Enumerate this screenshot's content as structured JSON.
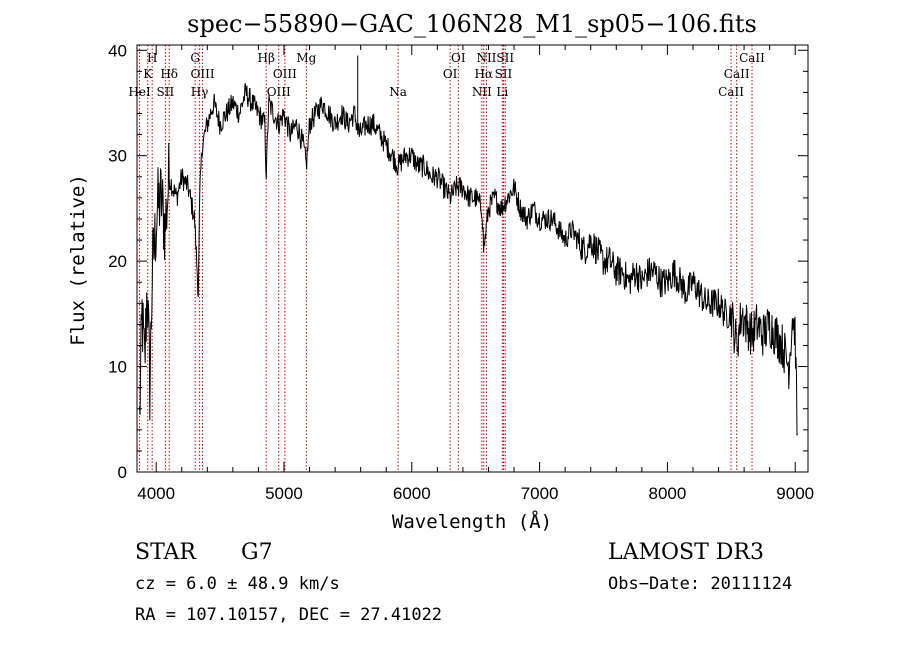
{
  "chart_data": {
    "type": "line",
    "title": "spec−55890−GAC_106N28_M1_sp05−106.fits",
    "xlabel": "Wavelength (Å)",
    "ylabel": "Flux (relative)",
    "xlim": [
      3850,
      9100
    ],
    "ylim": [
      0,
      40.5
    ],
    "xticks": [
      4000,
      5000,
      6000,
      7000,
      8000,
      9000
    ],
    "yticks": [
      0,
      10,
      20,
      30,
      40
    ],
    "grid": false,
    "series": [
      {
        "name": "spectrum",
        "x": [
          3870,
          3890,
          3910,
          3930,
          3950,
          3970,
          3990,
          4010,
          4040,
          4070,
          4100,
          4130,
          4160,
          4200,
          4250,
          4300,
          4330,
          4340,
          4360,
          4400,
          4450,
          4500,
          4550,
          4600,
          4650,
          4700,
          4750,
          4800,
          4850,
          4861,
          4880,
          4920,
          4960,
          5000,
          5050,
          5100,
          5150,
          5175,
          5200,
          5250,
          5300,
          5350,
          5400,
          5450,
          5500,
          5550,
          5590,
          5650,
          5700,
          5750,
          5800,
          5850,
          5893,
          5950,
          6000,
          6050,
          6100,
          6150,
          6200,
          6250,
          6300,
          6350,
          6400,
          6450,
          6500,
          6550,
          6563,
          6600,
          6650,
          6700,
          6750,
          6800,
          6850,
          6900,
          6950,
          7000,
          7050,
          7100,
          7150,
          7200,
          7250,
          7300,
          7350,
          7400,
          7450,
          7500,
          7550,
          7600,
          7650,
          7700,
          7750,
          7800,
          7850,
          7900,
          7950,
          8000,
          8050,
          8100,
          8150,
          8200,
          8250,
          8300,
          8350,
          8400,
          8450,
          8500,
          8542,
          8580,
          8620,
          8662,
          8700,
          8750,
          8800,
          8850,
          8900,
          8950,
          8980,
          9000,
          9020
        ],
        "values": [
          5,
          15,
          10,
          18,
          8,
          19,
          22,
          25,
          26,
          23,
          28,
          27,
          26,
          28,
          27,
          24,
          17,
          26,
          31,
          33,
          35,
          33,
          34,
          35,
          34,
          36,
          35,
          34,
          33,
          28,
          35,
          34,
          33,
          34,
          32,
          33,
          31,
          29,
          33,
          34,
          35,
          34,
          33,
          34,
          33,
          34,
          32,
          33,
          33,
          32,
          31,
          30,
          29,
          30,
          30,
          29,
          29,
          28,
          28,
          27,
          26,
          27,
          27,
          26,
          26,
          25,
          21,
          25,
          26,
          25,
          26,
          27,
          25,
          24,
          25,
          24,
          24,
          24,
          23,
          22,
          23,
          22,
          21,
          22,
          21,
          20,
          20,
          19,
          19,
          18,
          19,
          18,
          19,
          19,
          18,
          18,
          19,
          18,
          17,
          18,
          17,
          16,
          16,
          16,
          15,
          15,
          12,
          15,
          14,
          13,
          14,
          13,
          14,
          13,
          12,
          10,
          15,
          13,
          1
        ]
      }
    ],
    "lines": [
      {
        "wl": 3870,
        "tier": 3,
        "label": "HeI"
      },
      {
        "wl": 3934,
        "tier": 2,
        "label": "K"
      },
      {
        "wl": 3969,
        "tier": 1,
        "label": "H"
      },
      {
        "wl": 4072,
        "tier": 3,
        "label": "SII"
      },
      {
        "wl": 4102,
        "tier": 2,
        "label": "Hδ"
      },
      {
        "wl": 4305,
        "tier": 1,
        "label": "G"
      },
      {
        "wl": 4340,
        "tier": 3,
        "label": "Hγ"
      },
      {
        "wl": 4363,
        "tier": 2,
        "label": "OIII"
      },
      {
        "wl": 4861,
        "tier": 1,
        "label": "Hβ"
      },
      {
        "wl": 4959,
        "tier": 3,
        "label": "OIII"
      },
      {
        "wl": 5007,
        "tier": 2,
        "label": "OIII"
      },
      {
        "wl": 5175,
        "tier": 1,
        "label": "Mg"
      },
      {
        "wl": 5893,
        "tier": 3,
        "label": "Na"
      },
      {
        "wl": 6300,
        "tier": 2,
        "label": "OI"
      },
      {
        "wl": 6364,
        "tier": 1,
        "label": "OI"
      },
      {
        "wl": 6548,
        "tier": 3,
        "label": "NII"
      },
      {
        "wl": 6563,
        "tier": 2,
        "label": "Hα"
      },
      {
        "wl": 6584,
        "tier": 1,
        "label": "NII"
      },
      {
        "wl": 6708,
        "tier": 3,
        "label": "Li"
      },
      {
        "wl": 6717,
        "tier": 2,
        "label": "SII"
      },
      {
        "wl": 6731,
        "tier": 1,
        "label": "SII"
      },
      {
        "wl": 8498,
        "tier": 3,
        "label": "CaII"
      },
      {
        "wl": 8542,
        "tier": 2,
        "label": "CaII"
      },
      {
        "wl": 8662,
        "tier": 1,
        "label": "CaII"
      }
    ]
  },
  "info": {
    "object_class": "STAR",
    "subclass": "G7",
    "survey": "LAMOST DR3",
    "cz": "cz = 6.0 ± 48.9 km/s",
    "obs_date": "Obs−Date: 20111124",
    "coords": "RA = 107.10157, DEC =  27.41022"
  },
  "colors": {
    "spectrum": "#000000",
    "line_marker": "#cc0000",
    "axis": "#000000"
  }
}
